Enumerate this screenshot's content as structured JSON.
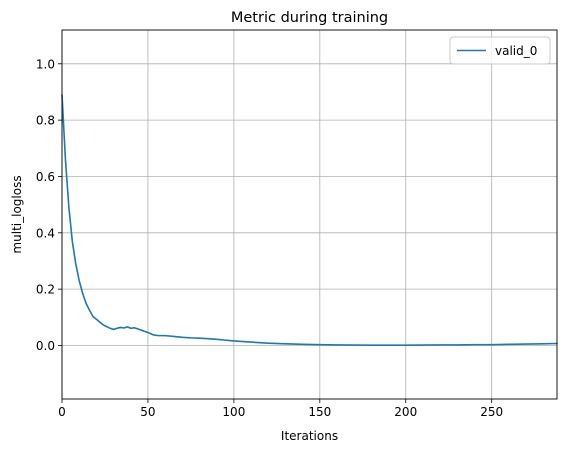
{
  "chart_data": {
    "type": "line",
    "title": "Metric during training",
    "xlabel": "Iterations",
    "ylabel": "multi_logloss",
    "xlim": [
      0,
      288
    ],
    "ylim": [
      -0.19,
      1.12
    ],
    "xticks": [
      0,
      50,
      100,
      150,
      200,
      250
    ],
    "xtick_labels": [
      "0",
      "50",
      "100",
      "150",
      "200",
      "250"
    ],
    "yticks": [
      0.0,
      0.2,
      0.4,
      0.6,
      0.8,
      1.0
    ],
    "ytick_labels": [
      "0.0",
      "0.2",
      "0.4",
      "0.6",
      "0.8",
      "1.0"
    ],
    "grid": true,
    "legend_position": "upper right",
    "series": [
      {
        "name": "valid_0",
        "color": "#1f77b4",
        "x": [
          0,
          2,
          4,
          6,
          8,
          10,
          12,
          14,
          16,
          18,
          20,
          22,
          24,
          26,
          28,
          30,
          32,
          34,
          36,
          38,
          40,
          42,
          44,
          46,
          48,
          50,
          53,
          56,
          60,
          65,
          70,
          75,
          80,
          85,
          90,
          95,
          100,
          110,
          120,
          130,
          140,
          150,
          160,
          170,
          180,
          190,
          200,
          210,
          220,
          230,
          240,
          250,
          260,
          270,
          280,
          288
        ],
        "y": [
          0.89,
          0.66,
          0.49,
          0.37,
          0.29,
          0.23,
          0.185,
          0.15,
          0.125,
          0.103,
          0.093,
          0.083,
          0.073,
          0.067,
          0.061,
          0.057,
          0.061,
          0.064,
          0.062,
          0.066,
          0.061,
          0.063,
          0.059,
          0.055,
          0.05,
          0.046,
          0.038,
          0.035,
          0.035,
          0.032,
          0.029,
          0.027,
          0.026,
          0.024,
          0.022,
          0.019,
          0.016,
          0.012,
          0.008,
          0.006,
          0.004,
          0.003,
          0.002,
          0.0015,
          0.001,
          0.001,
          0.001,
          0.0015,
          0.002,
          0.002,
          0.003,
          0.003,
          0.004,
          0.005,
          0.006,
          0.007
        ]
      }
    ]
  }
}
